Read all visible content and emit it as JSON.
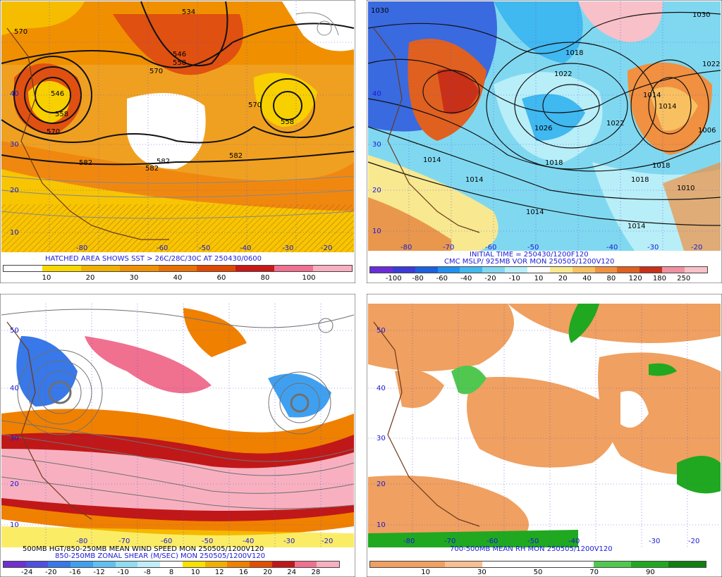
{
  "panels": [
    {
      "id": "tl",
      "captions": [
        "HATCHED AREA SHOWS SST > 26C/28C/30C AT 250430/0600"
      ],
      "lat_labels": [
        "40",
        "30",
        "20",
        "10"
      ],
      "lon_labels": [
        "-80",
        "-60",
        "-50",
        "-40",
        "-30",
        "-20"
      ],
      "contour_labels": [
        "570",
        "534",
        "546",
        "570",
        "558",
        "558",
        "546",
        "570",
        "558",
        "570",
        "582",
        "582",
        "582",
        "582"
      ],
      "colorbar": {
        "colors": [
          "#ffffff",
          "#f8d800",
          "#f0b000",
          "#f09000",
          "#e87000",
          "#e04800",
          "#c81818",
          "#f07090",
          "#f8b0c0"
        ],
        "ticks": [
          "10",
          "20",
          "30",
          "40",
          "60",
          "80",
          "100"
        ]
      }
    },
    {
      "id": "tr",
      "captions": [
        "INITIAL TIME = 250430/1200F120",
        "CMC MSLP/ 925MB VOR MON 250505/1200V120"
      ],
      "lat_labels": [
        "40",
        "30",
        "20",
        "10"
      ],
      "lon_labels": [
        "-80",
        "-70",
        "-60",
        "-50",
        "-40",
        "-30",
        "-20"
      ],
      "contour_labels": [
        "1030",
        "1018",
        "1030",
        "1022",
        "1022",
        "1026",
        "1022",
        "1014",
        "1014",
        "1018",
        "1014",
        "1018",
        "1010",
        "1014",
        "1014",
        "1014",
        "1018",
        "1006"
      ],
      "colorbar": {
        "colors": [
          "#6a2cd8",
          "#3a3ad8",
          "#1a60e0",
          "#2090f0",
          "#40b8f0",
          "#80d8f0",
          "#b8eef8",
          "#ffffff",
          "#f8e890",
          "#f8c060",
          "#f09040",
          "#e06020",
          "#c83018",
          "#f090a0",
          "#f8c0c8"
        ],
        "ticks": [
          "-100",
          "-80",
          "-60",
          "-40",
          "-20",
          "-10",
          "10",
          "20",
          "40",
          "80",
          "120",
          "180",
          "250"
        ]
      }
    },
    {
      "id": "bl",
      "captions": [
        "500MB HGT/850-250MB MEAN WIND SPEED MON 250505/1200V120",
        "850-250MB ZONAL SHEAR (M/SEC) MON 250505/1200V120"
      ],
      "lat_labels": [
        "50",
        "40",
        "30",
        "20",
        "10"
      ],
      "lon_labels": [
        "-80",
        "-70",
        "-60",
        "-50",
        "-40",
        "-30",
        "-20"
      ],
      "contour_labels": [],
      "colorbar": {
        "colors": [
          "#7030d0",
          "#5050e0",
          "#3878e8",
          "#40a0f0",
          "#60c0f0",
          "#90dcf0",
          "#c0eef8",
          "#ffffff",
          "#f8e000",
          "#f0b000",
          "#f08000",
          "#e05000",
          "#c01818",
          "#f07090",
          "#f8b0c0"
        ],
        "ticks": [
          "-24",
          "-20",
          "-16",
          "-12",
          "-10",
          "-8",
          "8",
          "10",
          "12",
          "16",
          "20",
          "24",
          "28"
        ]
      }
    },
    {
      "id": "br",
      "captions": [
        "700-500MB MEAN RH MON 250505/1200V120"
      ],
      "lat_labels": [
        "50",
        "40",
        "30",
        "20",
        "10"
      ],
      "lon_labels": [
        "-80",
        "-70",
        "-60",
        "-50",
        "-40",
        "-30",
        "-20"
      ],
      "contour_labels": [],
      "colorbar": {
        "colors": [
          "#f0a060",
          "#f0a060",
          "#f8c090",
          "#ffffff",
          "#ffffff",
          "#ffffff",
          "#50c850",
          "#20a820",
          "#108010"
        ],
        "ticks": [
          "10",
          "30",
          "50",
          "70",
          "90"
        ]
      }
    }
  ]
}
